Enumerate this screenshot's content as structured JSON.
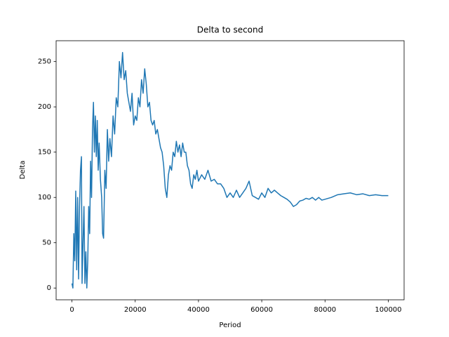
{
  "chart_data": {
    "type": "line",
    "title": "Delta to second",
    "x_label": "Period",
    "y_label": "Delta",
    "xlim": [
      -5000,
      105000
    ],
    "ylim": [
      -13,
      273
    ],
    "xticks": [
      0,
      20000,
      40000,
      60000,
      80000,
      100000
    ],
    "yticks": [
      0,
      50,
      100,
      150,
      200,
      250
    ],
    "x": [
      0,
      300,
      600,
      900,
      1200,
      1500,
      1800,
      2100,
      2400,
      2700,
      3000,
      3200,
      3500,
      3800,
      4100,
      4400,
      4700,
      5000,
      5300,
      5600,
      5900,
      6200,
      6500,
      6800,
      7100,
      7400,
      7700,
      8000,
      8300,
      8600,
      9000,
      9400,
      9700,
      10000,
      10400,
      10800,
      11200,
      11600,
      12000,
      12500,
      13000,
      13500,
      14000,
      14500,
      15000,
      15500,
      16000,
      16500,
      17000,
      17500,
      18000,
      18500,
      19000,
      19500,
      20000,
      20500,
      21000,
      21500,
      22000,
      22500,
      23000,
      23500,
      24000,
      24500,
      25000,
      25500,
      26000,
      26500,
      27000,
      27500,
      28000,
      28500,
      29000,
      29500,
      30000,
      30500,
      31000,
      31500,
      32000,
      32500,
      33000,
      33500,
      34000,
      34500,
      35000,
      35500,
      36000,
      36500,
      37000,
      37500,
      38000,
      38500,
      39000,
      39500,
      40000,
      41000,
      42000,
      43000,
      44000,
      45000,
      46000,
      47000,
      48000,
      49000,
      50000,
      51000,
      52000,
      53000,
      54000,
      55000,
      56000,
      57000,
      58000,
      59000,
      60000,
      61000,
      62000,
      63000,
      64000,
      65000,
      66000,
      67000,
      68000,
      69000,
      70000,
      71000,
      72000,
      73000,
      74000,
      75000,
      76000,
      77000,
      78000,
      79000,
      80000,
      82000,
      84000,
      86000,
      88000,
      90000,
      92000,
      94000,
      96000,
      98000,
      100000
    ],
    "series": [
      {
        "name": "Delta",
        "color": "#1f77b4",
        "values": [
          5,
          0,
          60,
          30,
          107,
          20,
          100,
          10,
          90,
          130,
          145,
          5,
          50,
          90,
          5,
          40,
          0,
          30,
          90,
          60,
          140,
          100,
          175,
          205,
          150,
          190,
          145,
          185,
          130,
          160,
          120,
          100,
          60,
          55,
          130,
          110,
          175,
          140,
          165,
          145,
          190,
          170,
          210,
          200,
          250,
          232,
          260,
          230,
          240,
          215,
          205,
          195,
          215,
          180,
          190,
          185,
          210,
          200,
          230,
          215,
          242,
          225,
          200,
          205,
          185,
          180,
          185,
          170,
          175,
          165,
          155,
          150,
          135,
          110,
          100,
          125,
          135,
          130,
          150,
          145,
          162,
          150,
          158,
          145,
          160,
          150,
          150,
          135,
          130,
          115,
          110,
          125,
          120,
          130,
          118,
          125,
          120,
          130,
          118,
          120,
          115,
          115,
          110,
          100,
          105,
          100,
          108,
          100,
          105,
          110,
          118,
          102,
          100,
          98,
          105,
          100,
          110,
          105,
          108,
          105,
          102,
          100,
          98,
          95,
          90,
          92,
          96,
          97,
          99,
          98,
          100,
          97,
          100,
          97,
          98,
          100,
          103,
          104,
          105,
          103,
          104,
          102,
          103,
          102,
          102
        ]
      }
    ]
  }
}
